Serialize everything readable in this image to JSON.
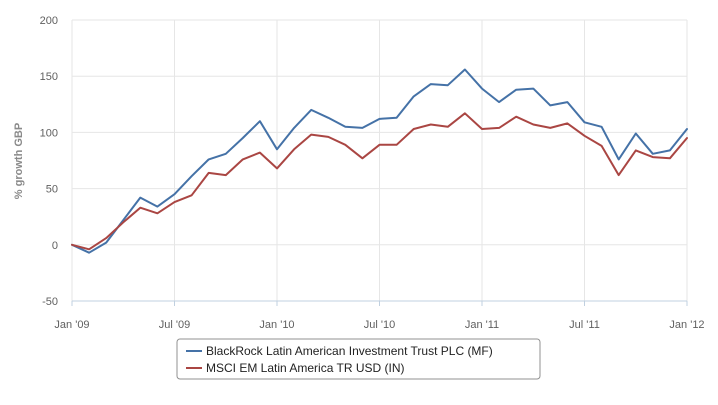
{
  "chart_data": {
    "type": "line",
    "title": "",
    "xlabel": "",
    "ylabel": "% growth GBP",
    "ylim": [
      -50,
      200
    ],
    "yticks": [
      -50,
      0,
      50,
      100,
      150,
      200
    ],
    "xticks": [
      "Jan '09",
      "Jul '09",
      "Jan '10",
      "Jul '10",
      "Jan '11",
      "Jul '11",
      "Jan '12"
    ],
    "grid": true,
    "legend_position": "bottom-center",
    "x_start": "Jan 2009",
    "x_end": "Jan 2012",
    "x": [
      "2009-01",
      "2009-02",
      "2009-03",
      "2009-04",
      "2009-05",
      "2009-06",
      "2009-07",
      "2009-08",
      "2009-09",
      "2009-10",
      "2009-11",
      "2009-12",
      "2010-01",
      "2010-02",
      "2010-03",
      "2010-04",
      "2010-05",
      "2010-06",
      "2010-07",
      "2010-08",
      "2010-09",
      "2010-10",
      "2010-11",
      "2010-12",
      "2011-01",
      "2011-02",
      "2011-03",
      "2011-04",
      "2011-05",
      "2011-06",
      "2011-07",
      "2011-08",
      "2011-09",
      "2011-10",
      "2011-11",
      "2011-12",
      "2012-01"
    ],
    "series": [
      {
        "name": "BlackRock Latin American Investment Trust PLC (MF)",
        "color": "#4572a7",
        "values": [
          0,
          -7,
          2,
          22,
          42,
          34,
          45,
          61,
          76,
          81,
          95,
          110,
          85,
          104,
          120,
          113,
          105,
          104,
          112,
          113,
          132,
          143,
          142,
          156,
          139,
          127,
          138,
          139,
          124,
          127,
          109,
          105,
          76,
          99,
          81,
          84,
          103
        ]
      },
      {
        "name": "MSCI EM Latin America TR USD (IN)",
        "color": "#aa4643",
        "values": [
          0,
          -4,
          6,
          20,
          33,
          28,
          38,
          44,
          64,
          62,
          76,
          82,
          68,
          85,
          98,
          96,
          89,
          77,
          89,
          89,
          103,
          107,
          105,
          117,
          103,
          104,
          114,
          107,
          104,
          108,
          97,
          88,
          62,
          84,
          78,
          77,
          95
        ]
      }
    ]
  }
}
